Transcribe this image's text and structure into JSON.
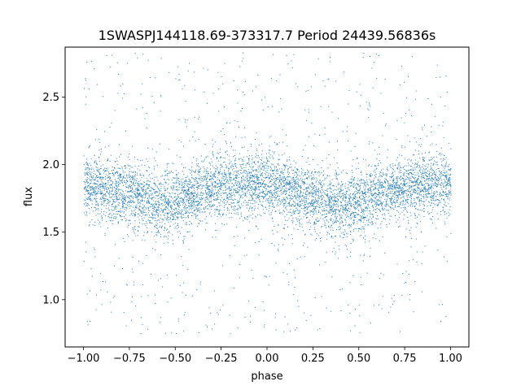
{
  "chart_data": {
    "type": "scatter",
    "title": "1SWASPJ144118.69-373317.7 Period 24439.56836s",
    "xlabel": "phase",
    "ylabel": "flux",
    "xlim": [
      -1.1,
      1.1
    ],
    "ylim": [
      0.65,
      2.87
    ],
    "grid": false,
    "x_ticks": [
      -1.0,
      -0.75,
      -0.5,
      -0.25,
      0.0,
      0.25,
      0.5,
      0.75,
      1.0
    ],
    "x_tick_labels": [
      "−1.00",
      "−0.75",
      "−0.50",
      "−0.25",
      "0.00",
      "0.25",
      "0.50",
      "0.75",
      "1.00"
    ],
    "y_ticks": [
      1.0,
      1.5,
      2.0,
      2.5
    ],
    "y_tick_labels": [
      "1.0",
      "1.5",
      "2.0",
      "2.5"
    ],
    "marker_color": "#1f77b4",
    "series": [
      {
        "phase_range": [
          -1.0,
          1.0
        ],
        "trend_phase": [
          -1.0,
          -0.9,
          -0.8,
          -0.7,
          -0.6,
          -0.5,
          -0.4,
          -0.3,
          -0.2,
          -0.1,
          0.0,
          0.1,
          0.2,
          0.3,
          0.4,
          0.5,
          0.6,
          0.7,
          0.8,
          0.9,
          1.0
        ],
        "trend_flux": [
          1.85,
          1.84,
          1.8,
          1.76,
          1.72,
          1.73,
          1.77,
          1.83,
          1.86,
          1.86,
          1.86,
          1.82,
          1.77,
          1.73,
          1.7,
          1.72,
          1.77,
          1.83,
          1.86,
          1.86,
          1.85
        ],
        "core_scatter": 0.12,
        "flux_extent": [
          0.75,
          2.83
        ]
      }
    ]
  }
}
